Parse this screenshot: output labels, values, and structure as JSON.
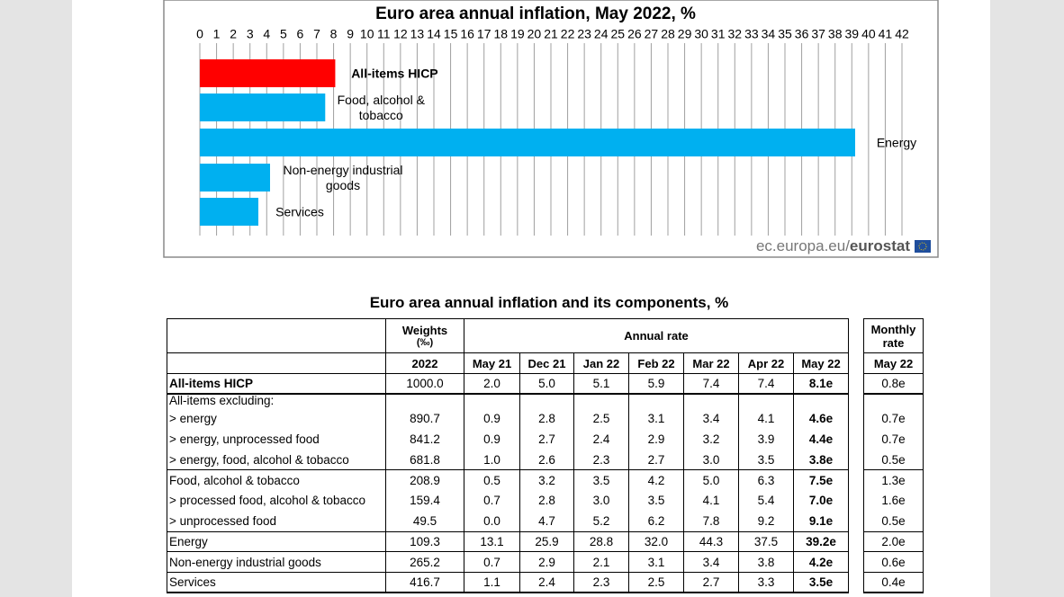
{
  "chart_data": {
    "type": "bar",
    "orientation": "horizontal",
    "title": "Euro area annual inflation, May 2022, %",
    "categories": [
      "All-items HICP",
      "Food, alcohol & tobacco",
      "Energy",
      "Non-energy industrial goods",
      "Services"
    ],
    "values": [
      8.1,
      7.5,
      39.2,
      4.2,
      3.5
    ],
    "colors": [
      "#ff0000",
      "#00b0f0",
      "#00b0f0",
      "#00b0f0",
      "#00b0f0"
    ],
    "xlim": [
      0,
      42
    ],
    "xticks": [
      0,
      1,
      2,
      3,
      4,
      5,
      6,
      7,
      8,
      9,
      10,
      11,
      12,
      13,
      14,
      15,
      16,
      17,
      18,
      19,
      20,
      21,
      22,
      23,
      24,
      25,
      26,
      27,
      28,
      29,
      30,
      31,
      32,
      33,
      34,
      35,
      36,
      37,
      38,
      39,
      40,
      41,
      42
    ],
    "grid": true,
    "source": [
      "ec.europa.eu/",
      "eurostat"
    ]
  },
  "table": {
    "title": "Euro area annual inflation and its components, %",
    "headers": {
      "weights": "Weights",
      "weights_unit": "(‰)",
      "annual": "Annual rate",
      "monthly": "Monthly rate",
      "year": "2022",
      "periods": [
        "May 21",
        "Dec 21",
        "Jan 22",
        "Feb 22",
        "Mar 22",
        "Apr 22",
        "May 22"
      ],
      "monthly_period": "May 22"
    },
    "rows": [
      {
        "label": "All-items HICP",
        "weight": "1000.0",
        "annual": [
          "2.0",
          "5.0",
          "5.1",
          "5.9",
          "7.4",
          "7.4",
          "8.1e"
        ],
        "monthly": "0.8e"
      },
      {
        "label": "All-items excluding:"
      },
      {
        "label": "> energy",
        "weight": "890.7",
        "annual": [
          "0.9",
          "2.8",
          "2.5",
          "3.1",
          "3.4",
          "4.1",
          "4.6e"
        ],
        "monthly": "0.7e"
      },
      {
        "label": "> energy, unprocessed food",
        "weight": "841.2",
        "annual": [
          "0.9",
          "2.7",
          "2.4",
          "2.9",
          "3.2",
          "3.9",
          "4.4e"
        ],
        "monthly": "0.7e"
      },
      {
        "label": "> energy, food, alcohol & tobacco",
        "weight": "681.8",
        "annual": [
          "1.0",
          "2.6",
          "2.3",
          "2.7",
          "3.0",
          "3.5",
          "3.8e"
        ],
        "monthly": "0.5e"
      },
      {
        "label": "Food, alcohol & tobacco",
        "weight": "208.9",
        "annual": [
          "0.5",
          "3.2",
          "3.5",
          "4.2",
          "5.0",
          "6.3",
          "7.5e"
        ],
        "monthly": "1.3e"
      },
      {
        "label": "> processed food, alcohol & tobacco",
        "weight": "159.4",
        "annual": [
          "0.7",
          "2.8",
          "3.0",
          "3.5",
          "4.1",
          "5.4",
          "7.0e"
        ],
        "monthly": "1.6e"
      },
      {
        "label": "> unprocessed food",
        "weight": "49.5",
        "annual": [
          "0.0",
          "4.7",
          "5.2",
          "6.2",
          "7.8",
          "9.2",
          "9.1e"
        ],
        "monthly": "0.5e"
      },
      {
        "label": "Energy",
        "weight": "109.3",
        "annual": [
          "13.1",
          "25.9",
          "28.8",
          "32.0",
          "44.3",
          "37.5",
          "39.2e"
        ],
        "monthly": "2.0e"
      },
      {
        "label": "Non-energy industrial goods",
        "weight": "265.2",
        "annual": [
          "0.7",
          "2.9",
          "2.1",
          "3.1",
          "3.4",
          "3.8",
          "4.2e"
        ],
        "monthly": "0.6e"
      },
      {
        "label": "Services",
        "weight": "416.7",
        "annual": [
          "1.1",
          "2.4",
          "2.3",
          "2.5",
          "2.7",
          "3.3",
          "3.5e"
        ],
        "monthly": "0.4e"
      }
    ]
  }
}
